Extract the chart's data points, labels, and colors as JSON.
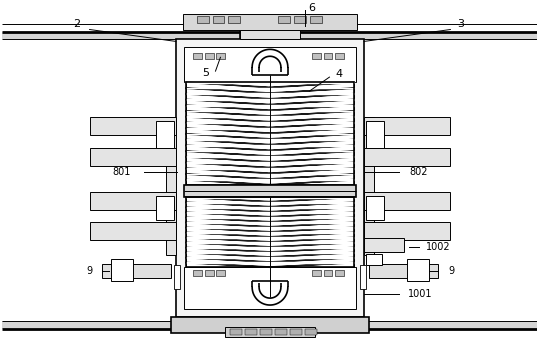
{
  "bg_color": "#ffffff",
  "fig_width": 5.39,
  "fig_height": 3.54,
  "line_color": "#000000",
  "gray_fill": "#cccccc",
  "light_gray": "#e8e8e8",
  "white": "#ffffff"
}
